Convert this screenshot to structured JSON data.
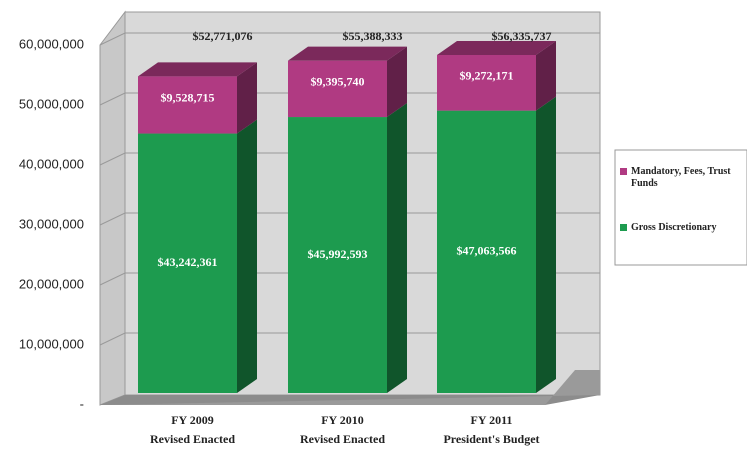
{
  "chart_data": {
    "type": "bar3d_stacked",
    "categories": [
      [
        "FY 2009",
        "Revised Enacted"
      ],
      [
        "FY 2010",
        "Revised Enacted"
      ],
      [
        "FY 2011",
        "President's Budget"
      ]
    ],
    "series": [
      {
        "name": "Gross Discretionary",
        "color": "#1d9b4f",
        "values": [
          43242361,
          45992593,
          47063566
        ],
        "value_labels": [
          "$43,242,361",
          "$45,992,593",
          "$47,063,566"
        ]
      },
      {
        "name": "Mandatory, Fees, Trust Funds",
        "color": "#b03a82",
        "values": [
          9528715,
          9395740,
          9272171
        ],
        "value_labels": [
          "$9,528,715",
          "$9,395,740",
          "$9,272,171"
        ]
      }
    ],
    "totals": [
      52771076,
      55388333,
      56335737
    ],
    "total_labels": [
      "$52,771,076",
      "$55,388,333",
      "$56,335,737"
    ],
    "ylim": [
      0,
      60000000
    ],
    "yticks": [
      {
        "value": 0,
        "label": "-"
      },
      {
        "value": 10000000,
        "label": "10,000,000"
      },
      {
        "value": 20000000,
        "label": "20,000,000"
      },
      {
        "value": 30000000,
        "label": "30,000,000"
      },
      {
        "value": 40000000,
        "label": "40,000,000"
      },
      {
        "value": 50000000,
        "label": "50,000,000"
      },
      {
        "value": 60000000,
        "label": "60,000,000"
      }
    ],
    "grid": true,
    "legend": "right"
  }
}
